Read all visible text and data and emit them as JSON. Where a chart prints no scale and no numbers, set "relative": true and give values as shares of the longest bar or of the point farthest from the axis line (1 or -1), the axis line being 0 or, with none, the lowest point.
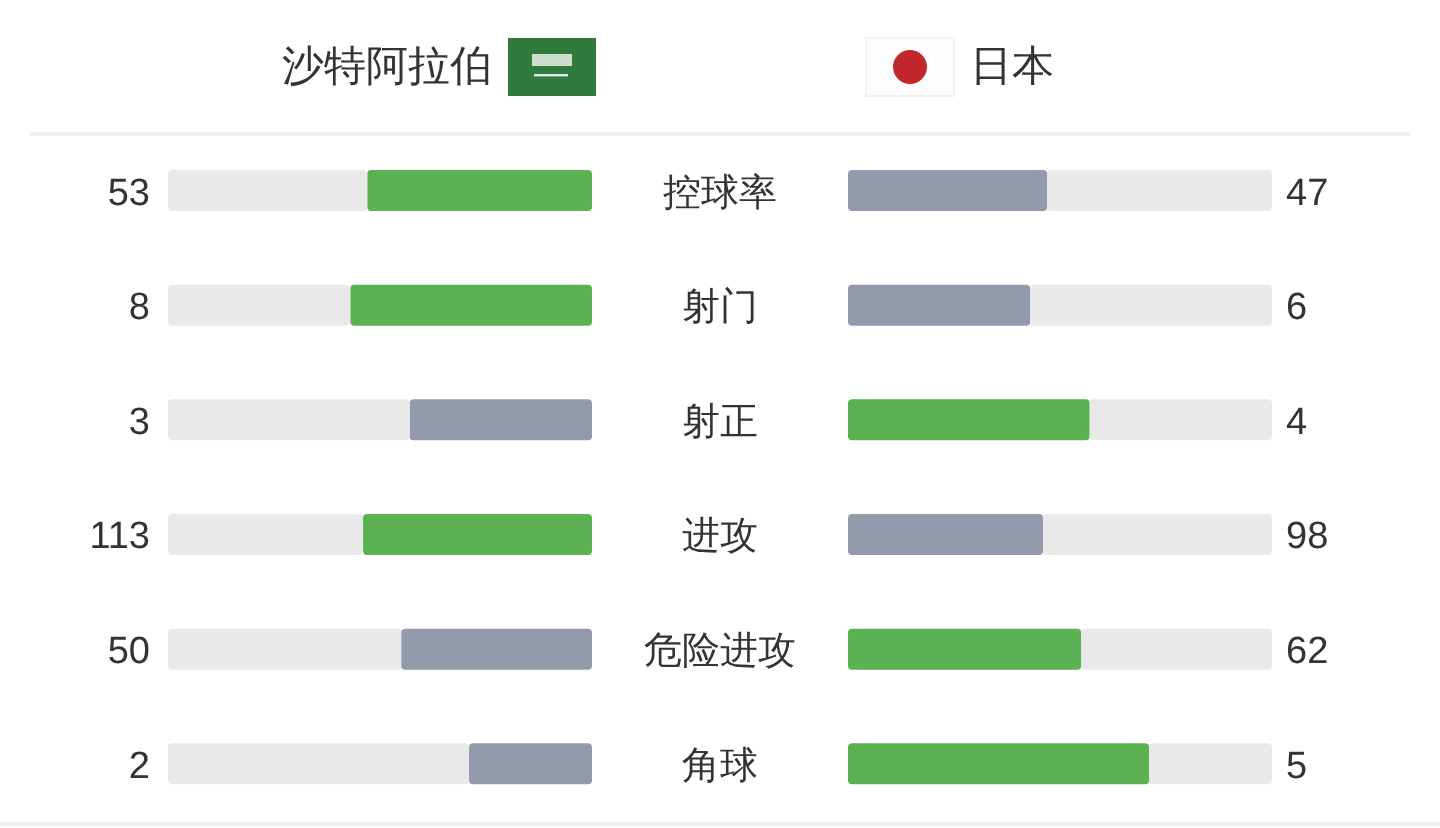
{
  "chart_data": [
    {
      "type": "bar",
      "orientation": "horizontal",
      "stacked": true,
      "relative": true,
      "title": "沙特阿拉伯",
      "categories": [
        "控球率",
        "射门",
        "射正",
        "进攻",
        "危险进攻",
        "角球"
      ],
      "tick_labels": false,
      "annotations": [
        "53",
        "8",
        "3",
        "113",
        "50",
        "2"
      ],
      "series": [
        {
          "colors": [
            "#5cb153",
            "#5cb153",
            "#939aab",
            "#5cb153",
            "#939aab",
            "#939aab"
          ],
          "values": [
            -0.53,
            -0.57,
            -0.43,
            -0.54,
            -0.45,
            -0.29
          ]
        },
        {
          "color": "#e9e9e9",
          "values": [
            -0.47,
            -0.43,
            -0.57,
            -0.46,
            -0.55,
            -0.71
          ]
        }
      ]
    },
    {
      "type": "bar",
      "orientation": "horizontal",
      "stacked": true,
      "relative": true,
      "title": "日本",
      "categories": [
        "控球率",
        "射门",
        "射正",
        "进攻",
        "危险进攻",
        "角球"
      ],
      "annotations": [
        "47",
        "6",
        "4",
        "98",
        "62",
        "5"
      ],
      "series": [
        {
          "colors": [
            "#939aab",
            "#939aab",
            "#5cb153",
            "#939aab",
            "#5cb153",
            "#5cb153"
          ],
          "values": [
            0.47,
            0.43,
            0.57,
            0.46,
            0.55,
            0.71
          ]
        },
        {
          "color": "#e9e9e9",
          "values": [
            0.53,
            0.57,
            0.43,
            0.54,
            0.45,
            0.29
          ]
        }
      ]
    }
  ]
}
